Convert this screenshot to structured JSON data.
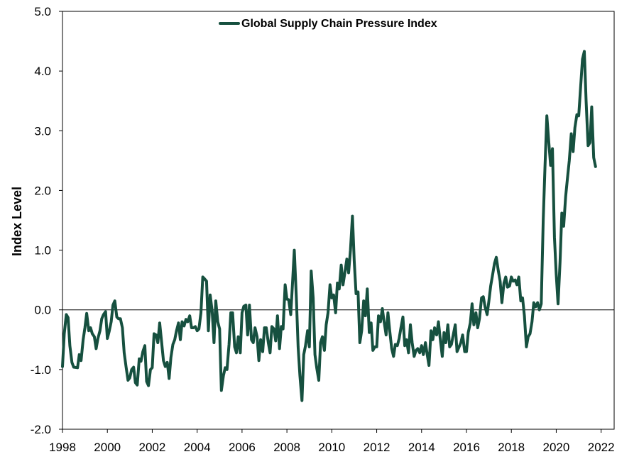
{
  "chart_data": {
    "type": "line",
    "title": "",
    "xlabel": "",
    "ylabel": "Index Level",
    "xlim": [
      1998.0,
      2022.58
    ],
    "ylim": [
      -2.0,
      5.0
    ],
    "x_ticks": [
      1998,
      2000,
      2002,
      2004,
      2006,
      2008,
      2010,
      2012,
      2014,
      2016,
      2018,
      2020,
      2022
    ],
    "x_tick_labels": [
      "1998",
      "2000",
      "2002",
      "2004",
      "2006",
      "2008",
      "2010",
      "2012",
      "2014",
      "2016",
      "2018",
      "2020",
      "2022"
    ],
    "y_ticks": [
      -2.0,
      -1.0,
      0.0,
      1.0,
      2.0,
      3.0,
      4.0,
      5.0
    ],
    "y_tick_labels": [
      "-2.0",
      "-1.0",
      "0.0",
      "1.0",
      "2.0",
      "3.0",
      "4.0",
      "5.0"
    ],
    "grid": false,
    "zero_line": true,
    "legend_position": "top-center",
    "colors": {
      "series": "#16503f",
      "axis": "#000000"
    },
    "series": [
      {
        "name": "Global Supply Chain Pressure Index",
        "points": [
          [
            1998.0,
            -0.95
          ],
          [
            1998.08,
            -0.4
          ],
          [
            1998.17,
            -0.08
          ],
          [
            1998.25,
            -0.13
          ],
          [
            1998.33,
            -0.6
          ],
          [
            1998.42,
            -0.88
          ],
          [
            1998.5,
            -0.96
          ],
          [
            1998.67,
            -0.97
          ],
          [
            1998.75,
            -0.75
          ],
          [
            1998.83,
            -0.85
          ],
          [
            1998.92,
            -0.5
          ],
          [
            1999.0,
            -0.3
          ],
          [
            1999.08,
            -0.06
          ],
          [
            1999.17,
            -0.35
          ],
          [
            1999.25,
            -0.3
          ],
          [
            1999.33,
            -0.4
          ],
          [
            1999.42,
            -0.45
          ],
          [
            1999.5,
            -0.65
          ],
          [
            1999.58,
            -0.48
          ],
          [
            1999.67,
            -0.35
          ],
          [
            1999.75,
            -0.15
          ],
          [
            1999.83,
            -0.08
          ],
          [
            1999.92,
            -0.03
          ],
          [
            2000.0,
            -0.48
          ],
          [
            2000.08,
            -0.36
          ],
          [
            2000.17,
            -0.2
          ],
          [
            2000.25,
            0.08
          ],
          [
            2000.33,
            0.15
          ],
          [
            2000.42,
            -0.12
          ],
          [
            2000.5,
            -0.15
          ],
          [
            2000.58,
            -0.15
          ],
          [
            2000.67,
            -0.3
          ],
          [
            2000.75,
            -0.72
          ],
          [
            2000.83,
            -0.95
          ],
          [
            2000.92,
            -1.18
          ],
          [
            2001.0,
            -1.14
          ],
          [
            2001.08,
            -1.0
          ],
          [
            2001.17,
            -0.96
          ],
          [
            2001.25,
            -1.22
          ],
          [
            2001.33,
            -1.26
          ],
          [
            2001.42,
            -0.82
          ],
          [
            2001.5,
            -0.86
          ],
          [
            2001.58,
            -0.7
          ],
          [
            2001.67,
            -0.6
          ],
          [
            2001.75,
            -1.2
          ],
          [
            2001.83,
            -1.27
          ],
          [
            2001.92,
            -1.0
          ],
          [
            2002.0,
            -0.97
          ],
          [
            2002.08,
            -0.4
          ],
          [
            2002.17,
            -0.42
          ],
          [
            2002.25,
            -0.55
          ],
          [
            2002.33,
            -0.22
          ],
          [
            2002.42,
            -0.55
          ],
          [
            2002.5,
            -0.85
          ],
          [
            2002.58,
            -0.95
          ],
          [
            2002.67,
            -0.88
          ],
          [
            2002.75,
            -1.15
          ],
          [
            2002.83,
            -0.8
          ],
          [
            2002.92,
            -0.58
          ],
          [
            2003.0,
            -0.5
          ],
          [
            2003.08,
            -0.35
          ],
          [
            2003.17,
            -0.22
          ],
          [
            2003.25,
            -0.5
          ],
          [
            2003.33,
            -0.2
          ],
          [
            2003.42,
            -0.27
          ],
          [
            2003.5,
            -0.16
          ],
          [
            2003.58,
            -0.2
          ],
          [
            2003.67,
            -0.1
          ],
          [
            2003.75,
            -0.3
          ],
          [
            2003.83,
            -0.3
          ],
          [
            2003.92,
            -0.28
          ],
          [
            2004.0,
            -0.35
          ],
          [
            2004.08,
            -0.32
          ],
          [
            2004.17,
            -0.05
          ],
          [
            2004.25,
            0.55
          ],
          [
            2004.33,
            0.52
          ],
          [
            2004.42,
            0.48
          ],
          [
            2004.5,
            -0.35
          ],
          [
            2004.58,
            0.25
          ],
          [
            2004.67,
            -0.02
          ],
          [
            2004.75,
            -0.55
          ],
          [
            2004.83,
            0.15
          ],
          [
            2004.92,
            -0.2
          ],
          [
            2005.0,
            -0.32
          ],
          [
            2005.08,
            -1.35
          ],
          [
            2005.17,
            -1.1
          ],
          [
            2005.25,
            -0.97
          ],
          [
            2005.33,
            -1.0
          ],
          [
            2005.42,
            -0.58
          ],
          [
            2005.5,
            -0.05
          ],
          [
            2005.58,
            -0.05
          ],
          [
            2005.67,
            -0.62
          ],
          [
            2005.75,
            -0.72
          ],
          [
            2005.83,
            -0.45
          ],
          [
            2005.92,
            -0.72
          ],
          [
            2006.0,
            -0.05
          ],
          [
            2006.08,
            0.06
          ],
          [
            2006.17,
            0.08
          ],
          [
            2006.25,
            -0.42
          ],
          [
            2006.33,
            0.08
          ],
          [
            2006.42,
            -0.5
          ],
          [
            2006.5,
            -0.55
          ],
          [
            2006.58,
            -0.3
          ],
          [
            2006.67,
            -0.45
          ],
          [
            2006.75,
            -0.85
          ],
          [
            2006.83,
            -0.5
          ],
          [
            2006.92,
            -0.7
          ],
          [
            2007.0,
            -0.3
          ],
          [
            2007.08,
            -0.3
          ],
          [
            2007.17,
            -0.55
          ],
          [
            2007.25,
            -0.72
          ],
          [
            2007.33,
            -0.28
          ],
          [
            2007.42,
            -0.32
          ],
          [
            2007.5,
            -0.52
          ],
          [
            2007.58,
            -0.1
          ],
          [
            2007.67,
            -0.65
          ],
          [
            2007.75,
            -0.28
          ],
          [
            2007.83,
            -0.32
          ],
          [
            2007.92,
            0.42
          ],
          [
            2008.0,
            0.18
          ],
          [
            2008.08,
            0.17
          ],
          [
            2008.17,
            -0.08
          ],
          [
            2008.25,
            0.45
          ],
          [
            2008.33,
            1.0
          ],
          [
            2008.42,
            0.2
          ],
          [
            2008.5,
            -0.62
          ],
          [
            2008.58,
            -1.1
          ],
          [
            2008.67,
            -1.52
          ],
          [
            2008.75,
            -0.75
          ],
          [
            2008.83,
            -0.6
          ],
          [
            2008.92,
            -0.35
          ],
          [
            2009.0,
            -0.62
          ],
          [
            2009.08,
            0.65
          ],
          [
            2009.17,
            0.2
          ],
          [
            2009.25,
            -0.75
          ],
          [
            2009.33,
            -0.98
          ],
          [
            2009.42,
            -1.18
          ],
          [
            2009.5,
            -0.55
          ],
          [
            2009.58,
            -0.45
          ],
          [
            2009.67,
            -0.68
          ],
          [
            2009.75,
            -0.25
          ],
          [
            2009.83,
            -0.05
          ],
          [
            2009.92,
            0.42
          ],
          [
            2010.0,
            0.2
          ],
          [
            2010.08,
            0.25
          ],
          [
            2010.17,
            -0.05
          ],
          [
            2010.25,
            0.45
          ],
          [
            2010.33,
            0.35
          ],
          [
            2010.42,
            0.75
          ],
          [
            2010.5,
            0.42
          ],
          [
            2010.58,
            0.62
          ],
          [
            2010.67,
            0.85
          ],
          [
            2010.75,
            0.62
          ],
          [
            2010.83,
            1.0
          ],
          [
            2010.92,
            1.57
          ],
          [
            2011.0,
            0.82
          ],
          [
            2011.08,
            0.27
          ],
          [
            2011.17,
            0.3
          ],
          [
            2011.25,
            -0.55
          ],
          [
            2011.33,
            -0.35
          ],
          [
            2011.42,
            0.15
          ],
          [
            2011.5,
            -0.1
          ],
          [
            2011.58,
            0.35
          ],
          [
            2011.67,
            -0.38
          ],
          [
            2011.75,
            -0.22
          ],
          [
            2011.83,
            -0.68
          ],
          [
            2011.92,
            -0.62
          ],
          [
            2012.0,
            -0.62
          ],
          [
            2012.08,
            -0.1
          ],
          [
            2012.17,
            -0.2
          ],
          [
            2012.25,
            0.02
          ],
          [
            2012.33,
            -0.2
          ],
          [
            2012.42,
            -0.42
          ],
          [
            2012.5,
            -0.05
          ],
          [
            2012.58,
            -0.35
          ],
          [
            2012.67,
            -0.65
          ],
          [
            2012.75,
            -0.78
          ],
          [
            2012.83,
            -0.58
          ],
          [
            2012.92,
            -0.6
          ],
          [
            2013.0,
            -0.48
          ],
          [
            2013.08,
            -0.3
          ],
          [
            2013.17,
            -0.12
          ],
          [
            2013.25,
            -0.6
          ],
          [
            2013.33,
            -0.5
          ],
          [
            2013.42,
            -0.72
          ],
          [
            2013.5,
            -0.25
          ],
          [
            2013.58,
            -0.55
          ],
          [
            2013.67,
            -0.78
          ],
          [
            2013.75,
            -0.68
          ],
          [
            2013.83,
            -0.65
          ],
          [
            2013.92,
            -0.72
          ],
          [
            2014.0,
            -0.6
          ],
          [
            2014.08,
            -0.75
          ],
          [
            2014.17,
            -0.55
          ],
          [
            2014.25,
            -0.75
          ],
          [
            2014.33,
            -0.93
          ],
          [
            2014.42,
            -0.35
          ],
          [
            2014.5,
            -0.5
          ],
          [
            2014.58,
            -0.3
          ],
          [
            2014.67,
            -0.42
          ],
          [
            2014.75,
            -0.2
          ],
          [
            2014.83,
            -0.48
          ],
          [
            2014.92,
            -0.78
          ],
          [
            2015.0,
            -0.38
          ],
          [
            2015.08,
            -0.55
          ],
          [
            2015.17,
            -0.25
          ],
          [
            2015.25,
            -0.62
          ],
          [
            2015.33,
            -0.58
          ],
          [
            2015.42,
            -0.4
          ],
          [
            2015.5,
            -0.25
          ],
          [
            2015.58,
            -0.7
          ],
          [
            2015.67,
            -0.62
          ],
          [
            2015.75,
            -0.55
          ],
          [
            2015.83,
            -0.42
          ],
          [
            2015.92,
            -0.7
          ],
          [
            2016.0,
            -0.7
          ],
          [
            2016.08,
            -0.38
          ],
          [
            2016.17,
            -0.22
          ],
          [
            2016.25,
            0.1
          ],
          [
            2016.33,
            -0.25
          ],
          [
            2016.42,
            -0.05
          ],
          [
            2016.5,
            -0.3
          ],
          [
            2016.58,
            -0.15
          ],
          [
            2016.67,
            0.2
          ],
          [
            2016.75,
            0.22
          ],
          [
            2016.83,
            0.05
          ],
          [
            2016.92,
            -0.08
          ],
          [
            2017.0,
            0.15
          ],
          [
            2017.08,
            0.4
          ],
          [
            2017.17,
            0.6
          ],
          [
            2017.25,
            0.78
          ],
          [
            2017.33,
            0.88
          ],
          [
            2017.42,
            0.65
          ],
          [
            2017.5,
            0.48
          ],
          [
            2017.58,
            0.12
          ],
          [
            2017.67,
            0.45
          ],
          [
            2017.75,
            0.55
          ],
          [
            2017.83,
            0.38
          ],
          [
            2017.92,
            0.4
          ],
          [
            2018.0,
            0.55
          ],
          [
            2018.08,
            0.48
          ],
          [
            2018.17,
            0.5
          ],
          [
            2018.25,
            0.42
          ],
          [
            2018.33,
            0.55
          ],
          [
            2018.42,
            0.15
          ],
          [
            2018.5,
            0.2
          ],
          [
            2018.58,
            -0.1
          ],
          [
            2018.67,
            -0.62
          ],
          [
            2018.75,
            -0.45
          ],
          [
            2018.83,
            -0.4
          ],
          [
            2018.92,
            -0.2
          ],
          [
            2019.0,
            0.12
          ],
          [
            2019.08,
            0.05
          ],
          [
            2019.17,
            0.12
          ],
          [
            2019.25,
            0.0
          ],
          [
            2019.33,
            0.1
          ],
          [
            2019.42,
            1.5
          ],
          [
            2019.5,
            2.4
          ],
          [
            2019.58,
            3.25
          ],
          [
            2019.67,
            2.8
          ],
          [
            2019.75,
            2.42
          ],
          [
            2019.83,
            2.7
          ],
          [
            2019.92,
            1.22
          ],
          [
            2020.0,
            0.6
          ],
          [
            2020.08,
            0.1
          ],
          [
            2020.17,
            0.8
          ],
          [
            2020.25,
            1.62
          ],
          [
            2020.33,
            1.4
          ],
          [
            2020.42,
            1.9
          ],
          [
            2020.5,
            2.2
          ],
          [
            2020.58,
            2.5
          ],
          [
            2020.67,
            2.95
          ],
          [
            2020.75,
            2.65
          ],
          [
            2020.83,
            3.05
          ],
          [
            2020.92,
            3.27
          ],
          [
            2021.0,
            3.25
          ],
          [
            2021.08,
            3.7
          ],
          [
            2021.17,
            4.2
          ],
          [
            2021.25,
            4.33
          ],
          [
            2021.33,
            3.5
          ],
          [
            2021.42,
            2.75
          ],
          [
            2021.5,
            2.8
          ],
          [
            2021.58,
            3.4
          ],
          [
            2021.67,
            2.55
          ],
          [
            2021.75,
            2.4
          ]
        ]
      }
    ]
  }
}
